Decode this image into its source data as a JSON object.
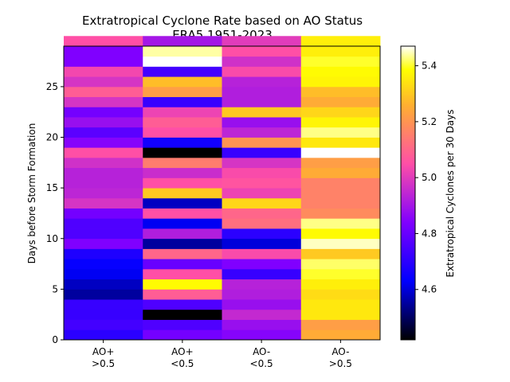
{
  "chart_data": {
    "type": "heatmap",
    "title": "Extratropical Cyclone Rate based on AO Status",
    "subtitle": "ERA5 1951-2023",
    "ylabel": "Days before Storm Formation",
    "colorbar_label": "Extratropical Cyclones per 30 Days",
    "colormap": "gnuplot2",
    "vmin": 4.42,
    "vmax": 5.47,
    "ylim": [
      0,
      29
    ],
    "y_ticks": [
      0,
      5,
      10,
      15,
      20,
      25
    ],
    "colorbar_ticks": [
      4.6,
      4.8,
      5.0,
      5.2,
      5.4
    ],
    "columns": [
      {
        "line1": "AO+",
        "line2": ">0.5"
      },
      {
        "line1": "AO+",
        "line2": "<0.5"
      },
      {
        "line1": "AO-",
        "line2": "<0.5"
      },
      {
        "line1": "AO-",
        "line2": ">0.5"
      }
    ],
    "values": [
      [
        4.7,
        4.82,
        4.85,
        5.25
      ],
      [
        4.74,
        4.76,
        4.88,
        5.22
      ],
      [
        4.72,
        4.42,
        4.95,
        5.35
      ],
      [
        4.72,
        4.76,
        4.88,
        5.35
      ],
      [
        4.55,
        5.08,
        4.92,
        5.33
      ],
      [
        4.58,
        5.38,
        4.93,
        5.36
      ],
      [
        4.62,
        5.05,
        4.72,
        5.4
      ],
      [
        4.64,
        4.8,
        4.84,
        5.42
      ],
      [
        4.68,
        5.1,
        5.04,
        5.3
      ],
      [
        4.84,
        4.55,
        4.6,
        5.45
      ],
      [
        4.76,
        4.92,
        4.7,
        5.38
      ],
      [
        4.76,
        4.62,
        5.12,
        5.43
      ],
      [
        4.82,
        5.05,
        5.1,
        5.18
      ],
      [
        4.98,
        4.58,
        5.32,
        5.16
      ],
      [
        4.94,
        5.3,
        5.02,
        5.16
      ],
      [
        4.93,
        5.05,
        5.06,
        5.16
      ],
      [
        4.93,
        4.96,
        5.04,
        5.25
      ],
      [
        4.97,
        5.15,
        4.98,
        5.22
      ],
      [
        5.05,
        4.42,
        4.72,
        5.47
      ],
      [
        4.85,
        4.66,
        5.2,
        5.35
      ],
      [
        4.78,
        5.05,
        4.94,
        5.43
      ],
      [
        4.88,
        5.08,
        4.88,
        5.37
      ],
      [
        4.82,
        5.02,
        5.3,
        5.32
      ],
      [
        4.98,
        4.72,
        4.92,
        5.25
      ],
      [
        5.08,
        5.22,
        4.92,
        5.28
      ],
      [
        4.98,
        5.28,
        4.93,
        5.37
      ],
      [
        5.03,
        4.74,
        5.04,
        5.38
      ],
      [
        4.84,
        5.47,
        4.97,
        5.4
      ],
      [
        4.84,
        5.44,
        5.05,
        5.36
      ],
      [
        5.05,
        4.9,
        5.0,
        5.36
      ]
    ]
  }
}
